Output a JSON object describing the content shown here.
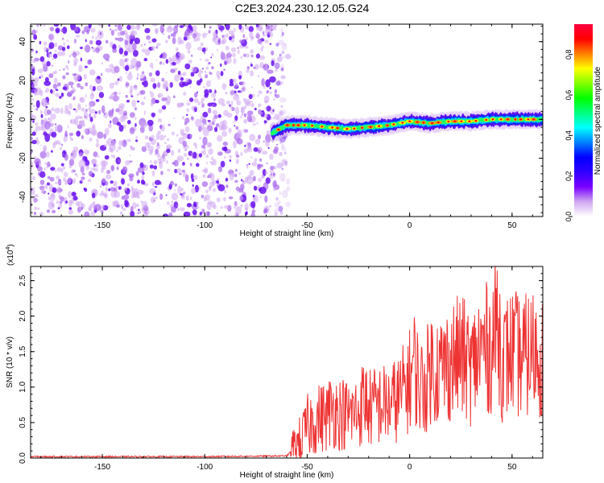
{
  "title": "C2E3.2024.230.12.05.G24",
  "chart_data": [
    {
      "type": "heatmap",
      "title": "C2E3.2024.230.12.05.G24",
      "xlabel": "Height of straight line (km)",
      "ylabel": "Frequency (Hz)",
      "xlim": [
        -185,
        65
      ],
      "ylim": [
        -50,
        49
      ],
      "xticks": [
        -150,
        -100,
        -50,
        0,
        50
      ],
      "yticks": [
        -40,
        -20,
        0,
        20,
        40
      ],
      "noise_region_x": [
        -185,
        -64
      ],
      "signal_band": {
        "x": [
          -67,
          -60,
          -50,
          -40,
          -30,
          -20,
          -10,
          0,
          10,
          20,
          30,
          40,
          50,
          60,
          65
        ],
        "freq": [
          -7,
          -3,
          -3,
          -4,
          -5,
          -4,
          -3,
          -1,
          -2,
          -1,
          -1,
          0,
          0,
          0,
          0
        ]
      },
      "colorbar": {
        "label": "Normalized spectral amplitude",
        "ticks": [
          0.0,
          0.2,
          0.4,
          0.6,
          0.8
        ],
        "range": [
          0,
          0.95
        ],
        "colors": [
          "#ffffff",
          "#d0a8f0",
          "#7a00ff",
          "#3000ff",
          "#0000ff",
          "#0080ff",
          "#00ffff",
          "#00ff80",
          "#00ff00",
          "#80ff00",
          "#ffff00",
          "#ff8000",
          "#ff0000",
          "#ff0040"
        ]
      },
      "grid": false
    },
    {
      "type": "line",
      "xlabel": "Height of straight line (km)",
      "ylabel": "SNR (10 * v/v)",
      "scale_label": "(x10",
      "scale_exponent": "4",
      "scale_close": ")",
      "xlim": [
        -185,
        65
      ],
      "ylim": [
        0,
        2.7
      ],
      "xticks": [
        -150,
        -100,
        -50,
        0,
        50
      ],
      "yticks": [
        0.0,
        0.5,
        1.0,
        1.5,
        2.0,
        2.5
      ],
      "series": [
        {
          "color": "#ee3333",
          "x": [
            -185,
            -150,
            -100,
            -60,
            -56,
            -52,
            -50,
            -45,
            -40,
            -38,
            -35,
            -30,
            -25,
            -22,
            -20,
            -15,
            -10,
            -5,
            -3,
            0,
            2,
            5,
            8,
            10,
            15,
            20,
            25,
            30,
            35,
            40,
            43,
            45,
            50,
            55,
            60,
            65
          ],
          "y": [
            0.02,
            0.02,
            0.02,
            0.03,
            0.15,
            0.3,
            0.45,
            0.55,
            0.6,
            0.7,
            0.65,
            0.6,
            0.65,
            0.85,
            0.7,
            0.75,
            0.75,
            0.85,
            0.95,
            1.1,
            1.35,
            1.0,
            1.05,
            1.3,
            1.25,
            1.35,
            1.45,
            1.25,
            1.55,
            1.55,
            2.0,
            1.35,
            1.5,
            1.4,
            1.5,
            1.45
          ]
        }
      ],
      "grid": false
    }
  ]
}
